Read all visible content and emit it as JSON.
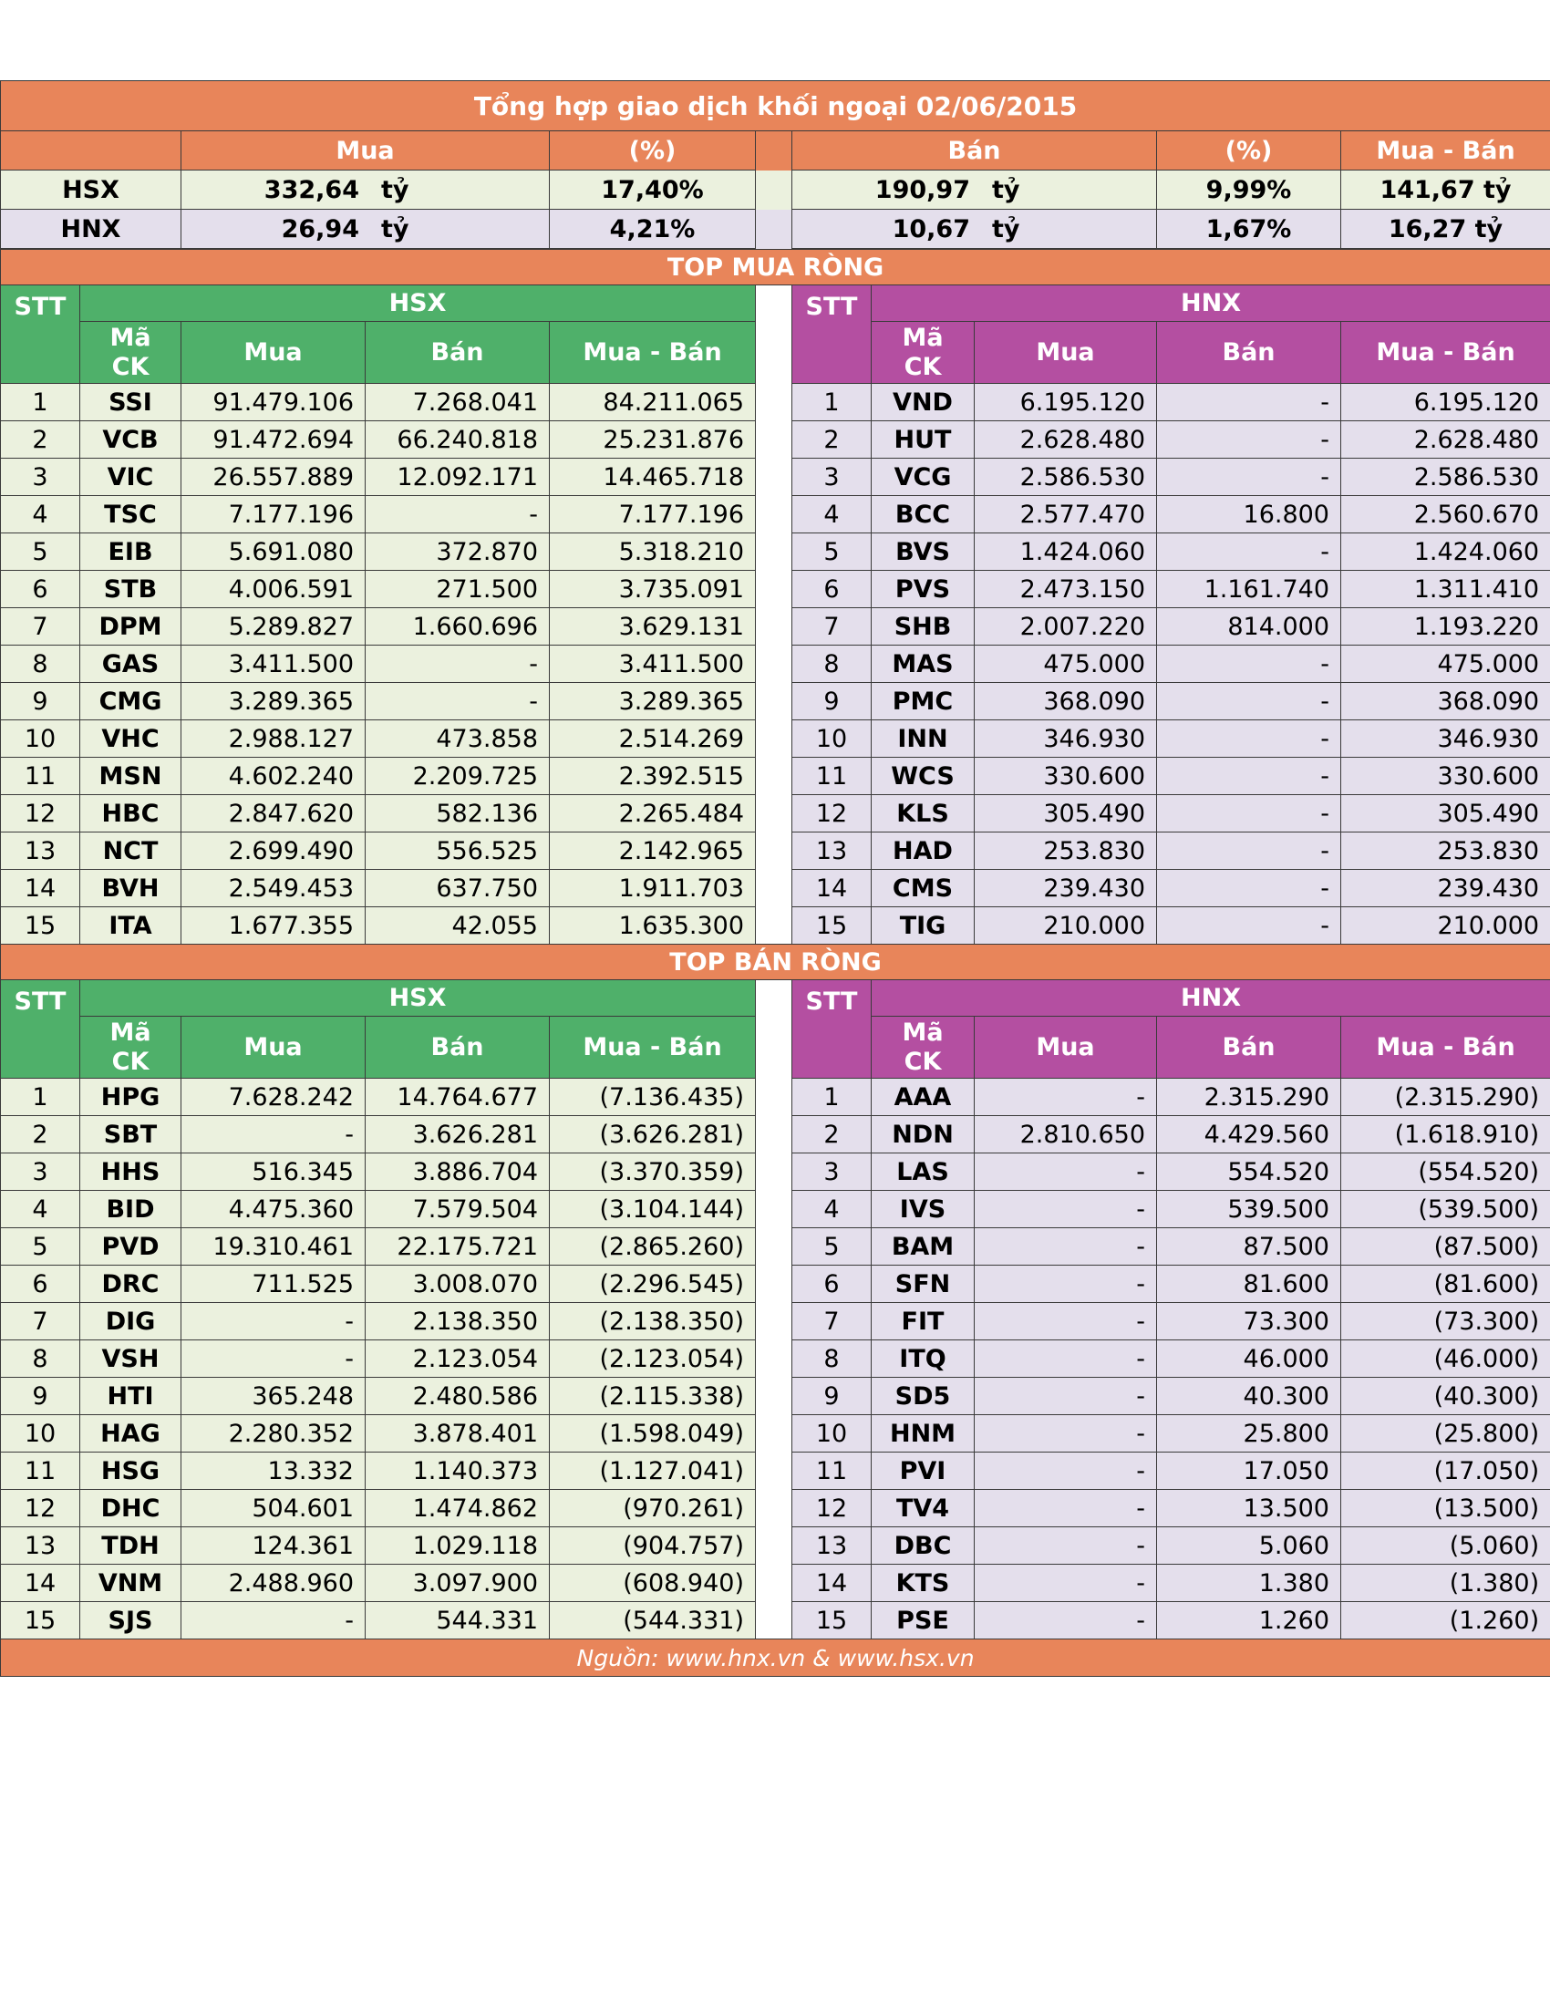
{
  "title": "Tổng hợp giao dịch khối ngoại 02/06/2015",
  "summary": {
    "headers": {
      "mua": "Mua",
      "pct1": "(%)",
      "ban": "Bán",
      "pct2": "(%)",
      "net": "Mua - Bán"
    },
    "unit": "tỷ",
    "rows": [
      {
        "label": "HSX",
        "mua": "332,64",
        "mua_pct": "17,40%",
        "ban": "190,97",
        "ban_pct": "9,99%",
        "net": "141,67 tỷ"
      },
      {
        "label": "HNX",
        "mua": "26,94",
        "mua_pct": "4,21%",
        "ban": "10,67",
        "ban_pct": "1,67%",
        "net": "16,27 tỷ"
      }
    ]
  },
  "columns": {
    "stt": "STT",
    "ma": "Mã",
    "ck": "CK",
    "mua": "Mua",
    "ban": "Bán",
    "net": "Mua - Bán",
    "hsx": "HSX",
    "hnx": "HNX"
  },
  "top_buy": {
    "title": "TOP MUA RÒNG",
    "hsx": [
      [
        "1",
        "SSI",
        "91.479.106",
        "7.268.041",
        "84.211.065"
      ],
      [
        "2",
        "VCB",
        "91.472.694",
        "66.240.818",
        "25.231.876"
      ],
      [
        "3",
        "VIC",
        "26.557.889",
        "12.092.171",
        "14.465.718"
      ],
      [
        "4",
        "TSC",
        "7.177.196",
        "-",
        "7.177.196"
      ],
      [
        "5",
        "EIB",
        "5.691.080",
        "372.870",
        "5.318.210"
      ],
      [
        "6",
        "STB",
        "4.006.591",
        "271.500",
        "3.735.091"
      ],
      [
        "7",
        "DPM",
        "5.289.827",
        "1.660.696",
        "3.629.131"
      ],
      [
        "8",
        "GAS",
        "3.411.500",
        "-",
        "3.411.500"
      ],
      [
        "9",
        "CMG",
        "3.289.365",
        "-",
        "3.289.365"
      ],
      [
        "10",
        "VHC",
        "2.988.127",
        "473.858",
        "2.514.269"
      ],
      [
        "11",
        "MSN",
        "4.602.240",
        "2.209.725",
        "2.392.515"
      ],
      [
        "12",
        "HBC",
        "2.847.620",
        "582.136",
        "2.265.484"
      ],
      [
        "13",
        "NCT",
        "2.699.490",
        "556.525",
        "2.142.965"
      ],
      [
        "14",
        "BVH",
        "2.549.453",
        "637.750",
        "1.911.703"
      ],
      [
        "15",
        "ITA",
        "1.677.355",
        "42.055",
        "1.635.300"
      ]
    ],
    "hnx": [
      [
        "1",
        "VND",
        "6.195.120",
        "-",
        "6.195.120"
      ],
      [
        "2",
        "HUT",
        "2.628.480",
        "-",
        "2.628.480"
      ],
      [
        "3",
        "VCG",
        "2.586.530",
        "-",
        "2.586.530"
      ],
      [
        "4",
        "BCC",
        "2.577.470",
        "16.800",
        "2.560.670"
      ],
      [
        "5",
        "BVS",
        "1.424.060",
        "-",
        "1.424.060"
      ],
      [
        "6",
        "PVS",
        "2.473.150",
        "1.161.740",
        "1.311.410"
      ],
      [
        "7",
        "SHB",
        "2.007.220",
        "814.000",
        "1.193.220"
      ],
      [
        "8",
        "MAS",
        "475.000",
        "-",
        "475.000"
      ],
      [
        "9",
        "PMC",
        "368.090",
        "-",
        "368.090"
      ],
      [
        "10",
        "INN",
        "346.930",
        "-",
        "346.930"
      ],
      [
        "11",
        "WCS",
        "330.600",
        "-",
        "330.600"
      ],
      [
        "12",
        "KLS",
        "305.490",
        "-",
        "305.490"
      ],
      [
        "13",
        "HAD",
        "253.830",
        "-",
        "253.830"
      ],
      [
        "14",
        "CMS",
        "239.430",
        "-",
        "239.430"
      ],
      [
        "15",
        "TIG",
        "210.000",
        "-",
        "210.000"
      ]
    ]
  },
  "top_sell": {
    "title": "TOP BÁN RÒNG",
    "hsx": [
      [
        "1",
        "HPG",
        "7.628.242",
        "14.764.677",
        "(7.136.435)"
      ],
      [
        "2",
        "SBT",
        "-",
        "3.626.281",
        "(3.626.281)"
      ],
      [
        "3",
        "HHS",
        "516.345",
        "3.886.704",
        "(3.370.359)"
      ],
      [
        "4",
        "BID",
        "4.475.360",
        "7.579.504",
        "(3.104.144)"
      ],
      [
        "5",
        "PVD",
        "19.310.461",
        "22.175.721",
        "(2.865.260)"
      ],
      [
        "6",
        "DRC",
        "711.525",
        "3.008.070",
        "(2.296.545)"
      ],
      [
        "7",
        "DIG",
        "-",
        "2.138.350",
        "(2.138.350)"
      ],
      [
        "8",
        "VSH",
        "-",
        "2.123.054",
        "(2.123.054)"
      ],
      [
        "9",
        "HTI",
        "365.248",
        "2.480.586",
        "(2.115.338)"
      ],
      [
        "10",
        "HAG",
        "2.280.352",
        "3.878.401",
        "(1.598.049)"
      ],
      [
        "11",
        "HSG",
        "13.332",
        "1.140.373",
        "(1.127.041)"
      ],
      [
        "12",
        "DHC",
        "504.601",
        "1.474.862",
        "(970.261)"
      ],
      [
        "13",
        "TDH",
        "124.361",
        "1.029.118",
        "(904.757)"
      ],
      [
        "14",
        "VNM",
        "2.488.960",
        "3.097.900",
        "(608.940)"
      ],
      [
        "15",
        "SJS",
        "-",
        "544.331",
        "(544.331)"
      ]
    ],
    "hnx": [
      [
        "1",
        "AAA",
        "-",
        "2.315.290",
        "(2.315.290)"
      ],
      [
        "2",
        "NDN",
        "2.810.650",
        "4.429.560",
        "(1.618.910)"
      ],
      [
        "3",
        "LAS",
        "-",
        "554.520",
        "(554.520)"
      ],
      [
        "4",
        "IVS",
        "-",
        "539.500",
        "(539.500)"
      ],
      [
        "5",
        "BAM",
        "-",
        "87.500",
        "(87.500)"
      ],
      [
        "6",
        "SFN",
        "-",
        "81.600",
        "(81.600)"
      ],
      [
        "7",
        "FIT",
        "-",
        "73.300",
        "(73.300)"
      ],
      [
        "8",
        "ITQ",
        "-",
        "46.000",
        "(46.000)"
      ],
      [
        "9",
        "SD5",
        "-",
        "40.300",
        "(40.300)"
      ],
      [
        "10",
        "HNM",
        "-",
        "25.800",
        "(25.800)"
      ],
      [
        "11",
        "PVI",
        "-",
        "17.050",
        "(17.050)"
      ],
      [
        "12",
        "TV4",
        "-",
        "13.500",
        "(13.500)"
      ],
      [
        "13",
        "DBC",
        "-",
        "5.060",
        "(5.060)"
      ],
      [
        "14",
        "KTS",
        "-",
        "1.380",
        "(1.380)"
      ],
      [
        "15",
        "PSE",
        "-",
        "1.260",
        "(1.260)"
      ]
    ]
  },
  "footer": {
    "source": "Nguồn: www.hnx.vn   &   www.hsx.vn"
  }
}
